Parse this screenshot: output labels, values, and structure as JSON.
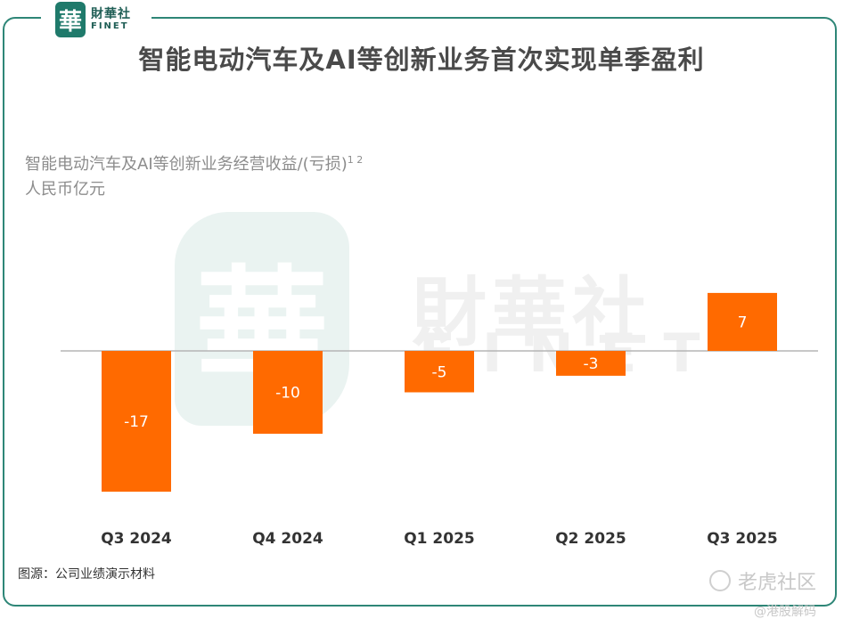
{
  "logo": {
    "seal_char": "華",
    "cn": "財華社",
    "en": "FINET"
  },
  "title": "智能电动汽车及AI等创新业务首次实现单季盈利",
  "subtitle": {
    "line1": "智能电动汽车及AI等创新业务经营收益/(亏损)",
    "sup": "1 2",
    "line2": "人民币亿元"
  },
  "watermark": {
    "seal_char": "華",
    "cn": "財華社",
    "en": "FINET"
  },
  "colors": {
    "bar": "#ff6a00",
    "frame": "#2e8677",
    "axis": "#b5b5b5"
  },
  "chart_data": {
    "type": "bar",
    "categories": [
      "Q3 2024",
      "Q4 2024",
      "Q1 2025",
      "Q2 2025",
      "Q3 2025"
    ],
    "values": [
      -17,
      -10,
      -5,
      -3,
      7
    ],
    "data_labels": [
      "-17",
      "-10",
      "-5",
      "-3",
      "7"
    ],
    "title": "智能电动汽车及AI等创新业务首次实现单季盈利",
    "ylabel": "智能电动汽车及AI等创新业务经营收益/(亏损)",
    "unit": "人民币亿元",
    "ylim": [
      -18,
      8
    ],
    "grid": false,
    "legend": "none"
  },
  "source": "图源：公司业绩演示材料",
  "footer": {
    "brand": "老虎社区",
    "handle": "@港股解码"
  }
}
